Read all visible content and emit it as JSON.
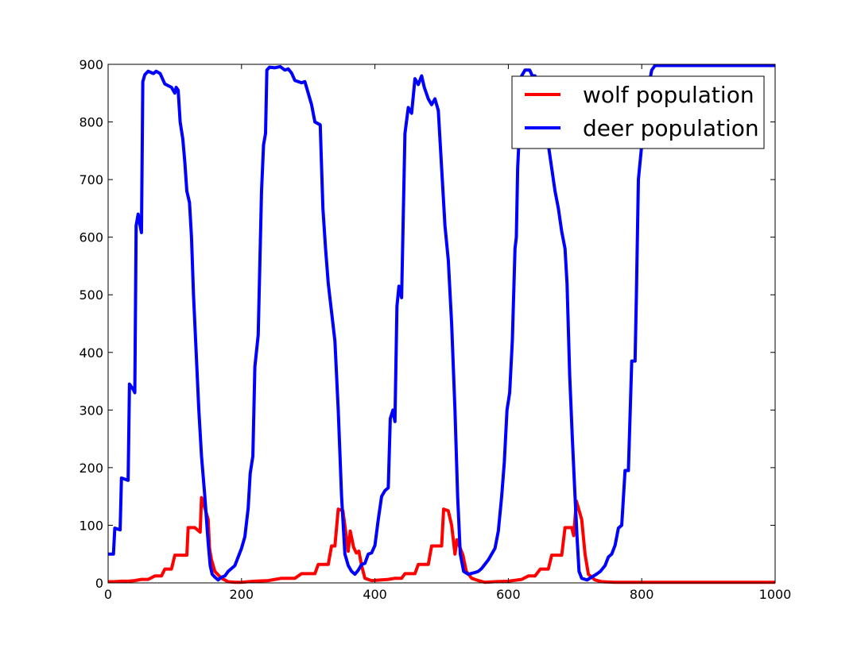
{
  "chart_data": {
    "type": "line",
    "xlim": [
      0,
      1000
    ],
    "ylim": [
      0,
      900
    ],
    "xticks": [
      0,
      200,
      400,
      600,
      800,
      1000
    ],
    "yticks": [
      0,
      100,
      200,
      300,
      400,
      500,
      600,
      700,
      800,
      900
    ],
    "grid": false,
    "legend_position": "top-right",
    "series": [
      {
        "name": "wolf population",
        "color": "#ff0000",
        "points": [
          [
            0,
            2
          ],
          [
            10,
            2
          ],
          [
            20,
            3
          ],
          [
            30,
            3
          ],
          [
            40,
            4
          ],
          [
            50,
            6
          ],
          [
            60,
            6
          ],
          [
            70,
            12
          ],
          [
            80,
            12
          ],
          [
            85,
            24
          ],
          [
            95,
            24
          ],
          [
            100,
            48
          ],
          [
            118,
            48
          ],
          [
            120,
            96
          ],
          [
            130,
            96
          ],
          [
            138,
            88
          ],
          [
            140,
            148
          ],
          [
            145,
            130
          ],
          [
            150,
            110
          ],
          [
            152,
            60
          ],
          [
            155,
            40
          ],
          [
            160,
            20
          ],
          [
            170,
            8
          ],
          [
            180,
            2
          ],
          [
            190,
            1
          ],
          [
            200,
            1
          ],
          [
            210,
            2
          ],
          [
            220,
            3
          ],
          [
            240,
            4
          ],
          [
            260,
            8
          ],
          [
            280,
            8
          ],
          [
            290,
            16
          ],
          [
            310,
            16
          ],
          [
            315,
            32
          ],
          [
            330,
            32
          ],
          [
            335,
            64
          ],
          [
            340,
            64
          ],
          [
            345,
            128
          ],
          [
            352,
            125
          ],
          [
            356,
            90
          ],
          [
            360,
            55
          ],
          [
            363,
            90
          ],
          [
            368,
            62
          ],
          [
            372,
            52
          ],
          [
            376,
            55
          ],
          [
            380,
            30
          ],
          [
            385,
            8
          ],
          [
            395,
            4
          ],
          [
            420,
            6
          ],
          [
            430,
            8
          ],
          [
            440,
            8
          ],
          [
            445,
            16
          ],
          [
            460,
            16
          ],
          [
            465,
            32
          ],
          [
            480,
            32
          ],
          [
            485,
            64
          ],
          [
            500,
            64
          ],
          [
            503,
            128
          ],
          [
            510,
            125
          ],
          [
            515,
            100
          ],
          [
            518,
            70
          ],
          [
            520,
            50
          ],
          [
            523,
            75
          ],
          [
            528,
            60
          ],
          [
            532,
            48
          ],
          [
            537,
            20
          ],
          [
            545,
            8
          ],
          [
            555,
            4
          ],
          [
            565,
            1
          ],
          [
            580,
            2
          ],
          [
            600,
            3
          ],
          [
            620,
            6
          ],
          [
            630,
            12
          ],
          [
            640,
            12
          ],
          [
            648,
            24
          ],
          [
            660,
            24
          ],
          [
            665,
            48
          ],
          [
            680,
            48
          ],
          [
            685,
            96
          ],
          [
            695,
            96
          ],
          [
            698,
            82
          ],
          [
            702,
            142
          ],
          [
            710,
            110
          ],
          [
            715,
            50
          ],
          [
            720,
            15
          ],
          [
            730,
            5
          ],
          [
            740,
            2
          ],
          [
            760,
            1
          ],
          [
            800,
            1
          ],
          [
            900,
            1
          ],
          [
            1000,
            1
          ]
        ]
      },
      {
        "name": "deer population",
        "color": "#0000ff",
        "points": [
          [
            0,
            50
          ],
          [
            8,
            50
          ],
          [
            10,
            95
          ],
          [
            18,
            92
          ],
          [
            20,
            182
          ],
          [
            30,
            178
          ],
          [
            32,
            345
          ],
          [
            38,
            335
          ],
          [
            40,
            330
          ],
          [
            42,
            620
          ],
          [
            45,
            640
          ],
          [
            48,
            620
          ],
          [
            50,
            608
          ],
          [
            52,
            870
          ],
          [
            55,
            882
          ],
          [
            60,
            888
          ],
          [
            68,
            884
          ],
          [
            72,
            888
          ],
          [
            78,
            884
          ],
          [
            85,
            866
          ],
          [
            95,
            860
          ],
          [
            100,
            850
          ],
          [
            102,
            860
          ],
          [
            105,
            855
          ],
          [
            108,
            800
          ],
          [
            112,
            770
          ],
          [
            115,
            730
          ],
          [
            118,
            680
          ],
          [
            122,
            660
          ],
          [
            125,
            600
          ],
          [
            128,
            500
          ],
          [
            132,
            400
          ],
          [
            136,
            300
          ],
          [
            140,
            220
          ],
          [
            145,
            150
          ],
          [
            150,
            70
          ],
          [
            153,
            30
          ],
          [
            156,
            15
          ],
          [
            160,
            10
          ],
          [
            165,
            5
          ],
          [
            170,
            10
          ],
          [
            175,
            12
          ],
          [
            180,
            20
          ],
          [
            190,
            30
          ],
          [
            195,
            45
          ],
          [
            200,
            60
          ],
          [
            205,
            80
          ],
          [
            210,
            130
          ],
          [
            213,
            190
          ],
          [
            217,
            220
          ],
          [
            220,
            375
          ],
          [
            225,
            430
          ],
          [
            230,
            680
          ],
          [
            233,
            760
          ],
          [
            236,
            780
          ],
          [
            238,
            890
          ],
          [
            242,
            895
          ],
          [
            250,
            894
          ],
          [
            258,
            896
          ],
          [
            265,
            890
          ],
          [
            270,
            892
          ],
          [
            275,
            885
          ],
          [
            280,
            872
          ],
          [
            290,
            868
          ],
          [
            295,
            870
          ],
          [
            300,
            850
          ],
          [
            305,
            830
          ],
          [
            310,
            800
          ],
          [
            318,
            795
          ],
          [
            322,
            650
          ],
          [
            326,
            580
          ],
          [
            330,
            520
          ],
          [
            335,
            470
          ],
          [
            340,
            420
          ],
          [
            345,
            300
          ],
          [
            350,
            150
          ],
          [
            355,
            50
          ],
          [
            360,
            30
          ],
          [
            365,
            20
          ],
          [
            370,
            15
          ],
          [
            375,
            22
          ],
          [
            380,
            32
          ],
          [
            385,
            34
          ],
          [
            390,
            50
          ],
          [
            395,
            52
          ],
          [
            400,
            65
          ],
          [
            405,
            110
          ],
          [
            410,
            150
          ],
          [
            415,
            160
          ],
          [
            420,
            165
          ],
          [
            423,
            285
          ],
          [
            427,
            300
          ],
          [
            430,
            280
          ],
          [
            433,
            480
          ],
          [
            436,
            515
          ],
          [
            440,
            495
          ],
          [
            445,
            780
          ],
          [
            450,
            825
          ],
          [
            455,
            815
          ],
          [
            460,
            875
          ],
          [
            465,
            865
          ],
          [
            470,
            880
          ],
          [
            474,
            860
          ],
          [
            480,
            840
          ],
          [
            485,
            830
          ],
          [
            490,
            840
          ],
          [
            495,
            820
          ],
          [
            500,
            720
          ],
          [
            505,
            620
          ],
          [
            510,
            560
          ],
          [
            515,
            450
          ],
          [
            520,
            300
          ],
          [
            524,
            150
          ],
          [
            528,
            50
          ],
          [
            533,
            20
          ],
          [
            540,
            15
          ],
          [
            550,
            18
          ],
          [
            555,
            20
          ],
          [
            560,
            25
          ],
          [
            570,
            40
          ],
          [
            575,
            50
          ],
          [
            580,
            60
          ],
          [
            585,
            90
          ],
          [
            590,
            150
          ],
          [
            594,
            210
          ],
          [
            598,
            300
          ],
          [
            602,
            330
          ],
          [
            606,
            420
          ],
          [
            610,
            580
          ],
          [
            612,
            600
          ],
          [
            614,
            720
          ],
          [
            618,
            820
          ],
          [
            620,
            880
          ],
          [
            625,
            890
          ],
          [
            632,
            890
          ],
          [
            636,
            880
          ],
          [
            640,
            880
          ],
          [
            645,
            860
          ],
          [
            650,
            840
          ],
          [
            655,
            800
          ],
          [
            660,
            760
          ],
          [
            665,
            720
          ],
          [
            670,
            680
          ],
          [
            675,
            650
          ],
          [
            680,
            610
          ],
          [
            685,
            580
          ],
          [
            688,
            520
          ],
          [
            692,
            360
          ],
          [
            696,
            250
          ],
          [
            700,
            150
          ],
          [
            703,
            80
          ],
          [
            706,
            20
          ],
          [
            710,
            8
          ],
          [
            718,
            5
          ],
          [
            725,
            10
          ],
          [
            732,
            15
          ],
          [
            738,
            20
          ],
          [
            745,
            30
          ],
          [
            750,
            45
          ],
          [
            755,
            50
          ],
          [
            760,
            65
          ],
          [
            765,
            95
          ],
          [
            770,
            100
          ],
          [
            775,
            195
          ],
          [
            780,
            195
          ],
          [
            785,
            385
          ],
          [
            790,
            385
          ],
          [
            792,
            500
          ],
          [
            795,
            700
          ],
          [
            800,
            760
          ],
          [
            805,
            800
          ],
          [
            810,
            860
          ],
          [
            815,
            890
          ],
          [
            820,
            898
          ],
          [
            850,
            898
          ],
          [
            900,
            898
          ],
          [
            1000,
            898
          ]
        ]
      }
    ]
  }
}
